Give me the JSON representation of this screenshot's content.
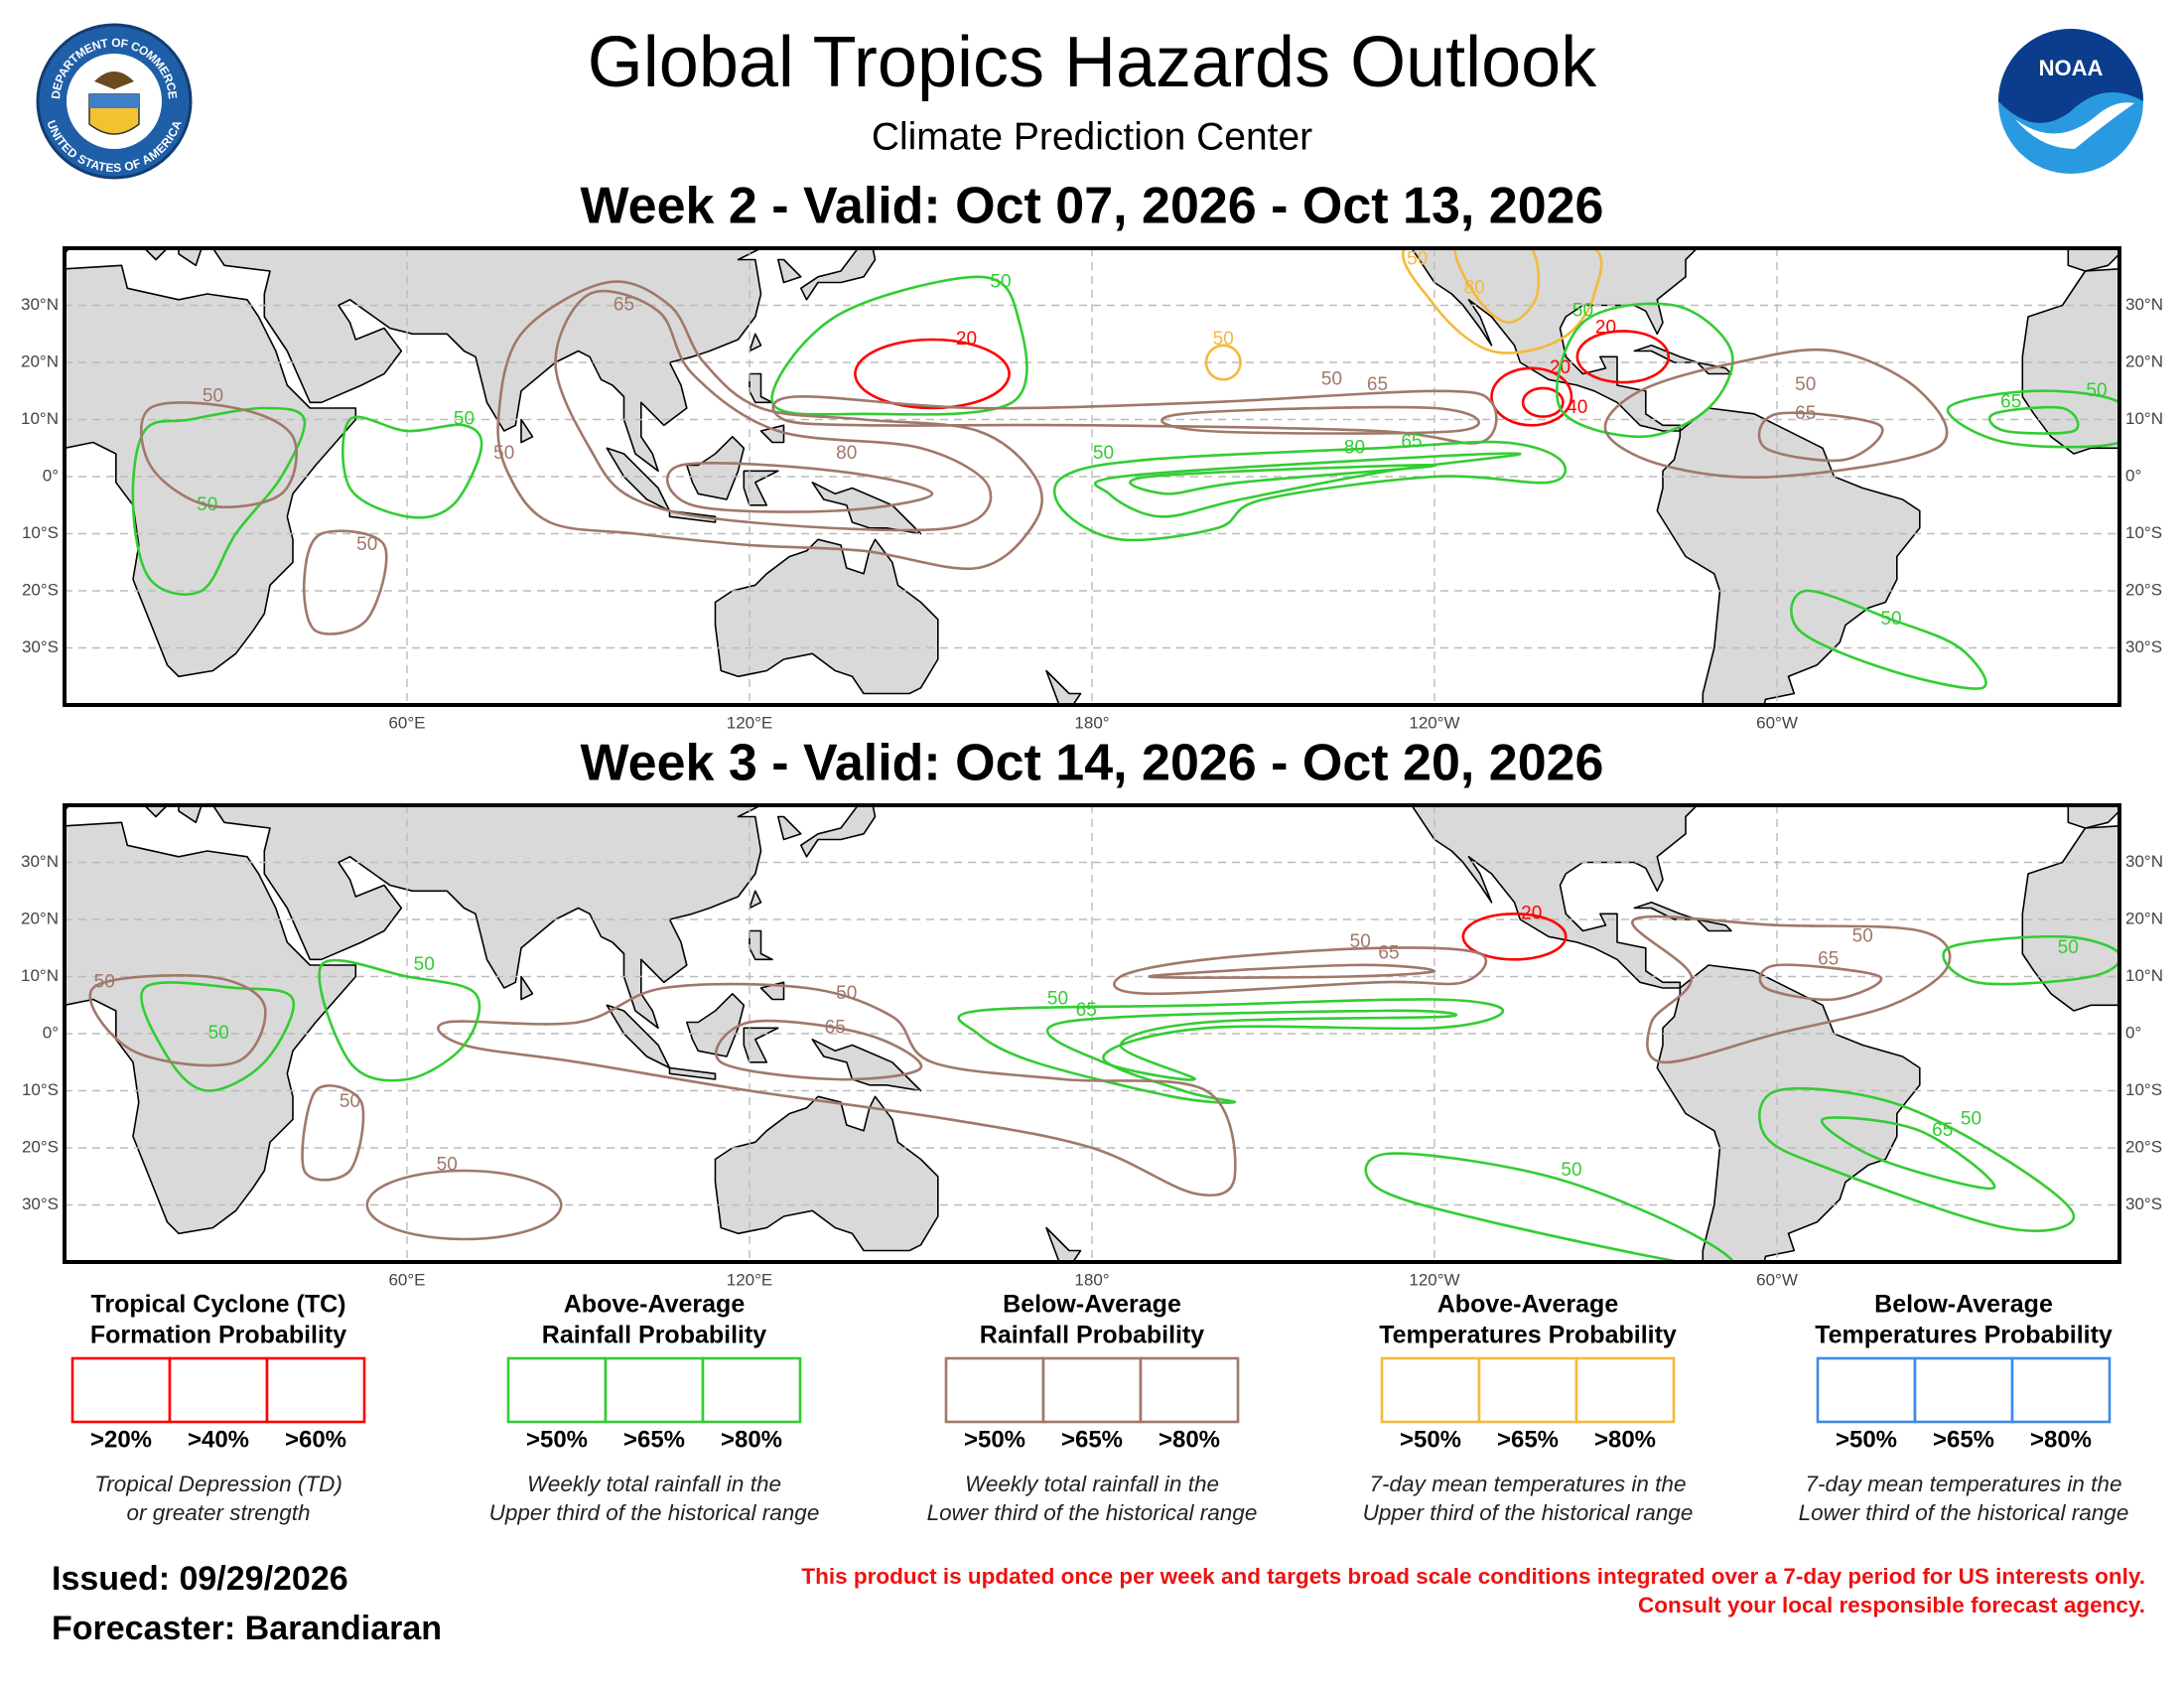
{
  "header": {
    "title": "Global Tropics Hazards Outlook",
    "subtitle": "Climate Prediction Center",
    "seal_top": "DEPARTMENT OF COMMERCE",
    "seal_bottom": "UNITED STATES OF AMERICA",
    "noaa": "NOAA"
  },
  "maps": [
    {
      "title": "Week 2 - Valid: Oct 07, 2026 - Oct 13, 2026",
      "xlim": [
        0,
        360
      ],
      "ylim": [
        -40,
        40
      ],
      "xticks": [
        {
          "value": 60,
          "label": "60°E"
        },
        {
          "value": 120,
          "label": "120°E"
        },
        {
          "value": 180,
          "label": "180°"
        },
        {
          "value": -120,
          "label": "120°W"
        },
        {
          "value": -60,
          "label": "60°W"
        }
      ],
      "yticks": [
        {
          "value": 30,
          "label": "30°N"
        },
        {
          "value": 20,
          "label": "20°N"
        },
        {
          "value": 10,
          "label": "10°N"
        },
        {
          "value": 0,
          "label": "0°"
        },
        {
          "value": -10,
          "label": "10°S"
        },
        {
          "value": -20,
          "label": "20°S"
        },
        {
          "value": -30,
          "label": "30°S"
        }
      ],
      "contours": [
        {
          "value": 20,
          "color": "#ff0000"
        },
        {
          "value": 50,
          "color": "#33cc33"
        },
        {
          "value": 20,
          "color": "#ff0000"
        },
        {
          "value": 40,
          "color": "#ff0000"
        },
        {
          "value": 20,
          "color": "#ff0000"
        },
        {
          "value": 50,
          "color": "#f5b93b"
        },
        {
          "value": 80,
          "color": "#f5b93b"
        },
        {
          "value": 50,
          "color": "#f5b93b"
        },
        {
          "value": 50,
          "color": "#33cc33"
        },
        {
          "value": 50,
          "color": "#a0786a"
        },
        {
          "value": 65,
          "color": "#a0786a"
        },
        {
          "value": 50,
          "color": "#a0786a"
        },
        {
          "value": 65,
          "color": "#a0786a"
        },
        {
          "value": 80,
          "color": "#a0786a"
        },
        {
          "value": 50,
          "color": "#a0786a"
        },
        {
          "value": 65,
          "color": "#a0786a"
        },
        {
          "value": 50,
          "color": "#33cc33"
        },
        {
          "value": 65,
          "color": "#33cc33"
        },
        {
          "value": 80,
          "color": "#33cc33"
        },
        {
          "value": 50,
          "color": "#33cc33"
        },
        {
          "value": 50,
          "color": "#33cc33"
        },
        {
          "value": 50,
          "color": "#33cc33"
        },
        {
          "value": 50,
          "color": "#a0786a"
        },
        {
          "value": 50,
          "color": "#a0786a"
        },
        {
          "value": 50,
          "color": "#33cc33"
        },
        {
          "value": 65,
          "color": "#33cc33"
        }
      ]
    },
    {
      "title": "Week 3 - Valid: Oct 14, 2026 - Oct 20, 2026",
      "xlim": [
        0,
        360
      ],
      "ylim": [
        -40,
        40
      ],
      "xticks": [
        {
          "value": 60,
          "label": "60°E"
        },
        {
          "value": 120,
          "label": "120°E"
        },
        {
          "value": 180,
          "label": "180°"
        },
        {
          "value": -120,
          "label": "120°W"
        },
        {
          "value": -60,
          "label": "60°W"
        }
      ],
      "yticks": [
        {
          "value": 30,
          "label": "30°N"
        },
        {
          "value": 20,
          "label": "20°N"
        },
        {
          "value": 10,
          "label": "10°N"
        },
        {
          "value": 0,
          "label": "0°"
        },
        {
          "value": -10,
          "label": "10°S"
        },
        {
          "value": -20,
          "label": "20°S"
        },
        {
          "value": -30,
          "label": "30°S"
        }
      ],
      "contours": [
        {
          "value": 20,
          "color": "#ff0000"
        },
        {
          "value": 50,
          "color": "#a0786a"
        },
        {
          "value": 65,
          "color": "#a0786a"
        },
        {
          "value": 50,
          "color": "#33cc33"
        },
        {
          "value": 65,
          "color": "#33cc33"
        },
        {
          "value": 50,
          "color": "#a0786a"
        },
        {
          "value": 65,
          "color": "#a0786a"
        },
        {
          "value": 50,
          "color": "#a0786a"
        },
        {
          "value": 50,
          "color": "#a0786a"
        },
        {
          "value": 65,
          "color": "#a0786a"
        },
        {
          "value": 50,
          "color": "#33cc33"
        },
        {
          "value": 65,
          "color": "#33cc33"
        },
        {
          "value": 50,
          "color": "#33cc33"
        },
        {
          "value": 50,
          "color": "#33cc33"
        },
        {
          "value": 50,
          "color": "#33cc33"
        },
        {
          "value": 50,
          "color": "#a0786a"
        },
        {
          "value": 50,
          "color": "#a0786a"
        },
        {
          "value": 50,
          "color": "#33cc33"
        }
      ]
    }
  ],
  "legend": [
    {
      "title": [
        "Tropical Cyclone (TC)",
        "Formation Probability"
      ],
      "color": "#ff0000",
      "thresholds": [
        ">20%",
        ">40%",
        ">60%"
      ],
      "description": [
        "Tropical Depression (TD)",
        "or greater strength"
      ]
    },
    {
      "title": [
        "Above-Average",
        "Rainfall Probability"
      ],
      "color": "#33cc33",
      "thresholds": [
        ">50%",
        ">65%",
        ">80%"
      ],
      "description": [
        "Weekly total rainfall in the",
        "Upper third of the historical range"
      ]
    },
    {
      "title": [
        "Below-Average",
        "Rainfall Probability"
      ],
      "color": "#a0786a",
      "thresholds": [
        ">50%",
        ">65%",
        ">80%"
      ],
      "description": [
        "Weekly total rainfall in the",
        "Lower third of the historical range"
      ]
    },
    {
      "title": [
        "Above-Average",
        "Temperatures Probability"
      ],
      "color": "#f5b93b",
      "thresholds": [
        ">50%",
        ">65%",
        ">80%"
      ],
      "description": [
        "7-day mean temperatures in the",
        "Upper third of the historical range"
      ]
    },
    {
      "title": [
        "Below-Average",
        "Temperatures Probability"
      ],
      "color": "#3d8be8",
      "thresholds": [
        ">50%",
        ">65%",
        ">80%"
      ],
      "description": [
        "7-day mean temperatures in the",
        "Lower third of the historical range"
      ]
    }
  ],
  "footer": {
    "issued": "Issued: 09/29/2026",
    "forecaster": "Forecaster: Barandiaran",
    "disclaimer": [
      "This product is updated once per week and targets broad scale conditions integrated over a 7-day period for US interests only.",
      "Consult your local responsible forecast agency."
    ]
  }
}
